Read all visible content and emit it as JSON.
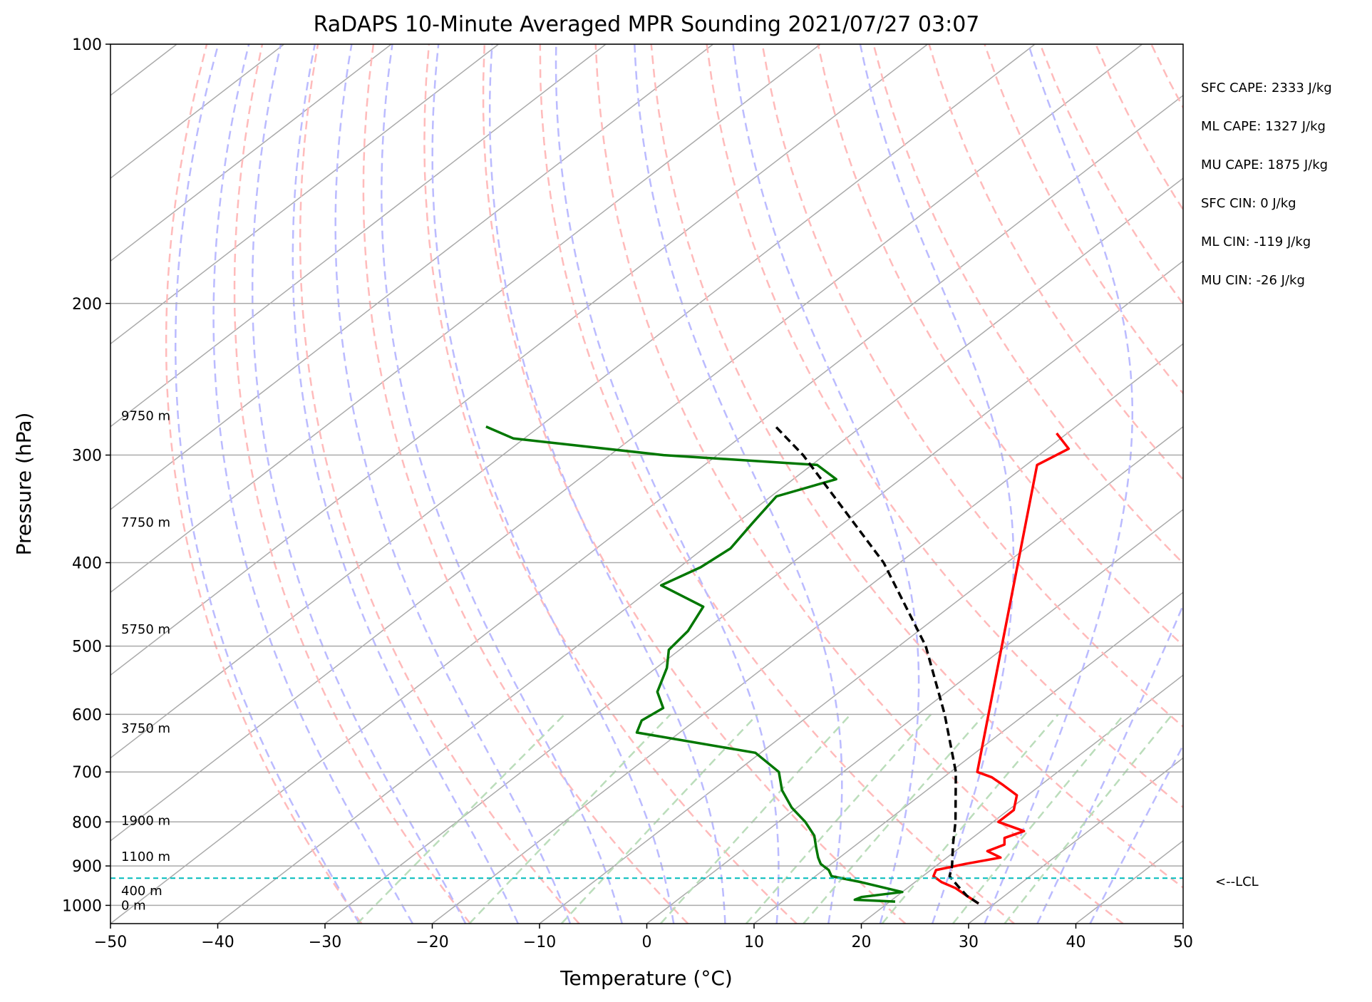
{
  "chart_data": {
    "type": "line",
    "title": "RaDAPS 10-Minute Averaged MPR Sounding 2021/07/27 03:07",
    "xlabel": "Temperature (°C)",
    "ylabel": "Pressure (hPa)",
    "xlim": [
      -50,
      50
    ],
    "ylim": [
      1050,
      100
    ],
    "y_scale": "log",
    "x_ticks": [
      -50,
      -40,
      -30,
      -20,
      -10,
      0,
      10,
      20,
      30,
      40,
      50
    ],
    "x_tick_labels": [
      "−50",
      "−40",
      "−30",
      "−20",
      "−10",
      "0",
      "10",
      "20",
      "30",
      "40",
      "50"
    ],
    "y_ticks": [
      100,
      200,
      300,
      400,
      500,
      600,
      700,
      800,
      900,
      1000
    ],
    "y_tick_labels": [
      "100",
      "200",
      "300",
      "400",
      "500",
      "600",
      "700",
      "800",
      "900",
      "1000"
    ],
    "grid": true,
    "skew": true,
    "background_lines": {
      "isotherms": {
        "color": "#aaaaaa"
      },
      "dry_adiabats": {
        "color": "#ffbbbb"
      },
      "moist_adiabats": {
        "color": "#bbbbff"
      },
      "mixing_ratio": {
        "color": "#bbddbb"
      }
    },
    "series": [
      {
        "color": "#ff0000",
        "points": [
          {
            "p": 995,
            "t": 28.5
          },
          {
            "p": 975,
            "t": 26.5
          },
          {
            "p": 955,
            "t": 24.5
          },
          {
            "p": 940,
            "t": 22.5
          },
          {
            "p": 925,
            "t": 21.0
          },
          {
            "p": 910,
            "t": 20.5
          },
          {
            "p": 895,
            "t": 22.5
          },
          {
            "p": 880,
            "t": 25.0
          },
          {
            "p": 865,
            "t": 23.0
          },
          {
            "p": 850,
            "t": 23.8
          },
          {
            "p": 835,
            "t": 23.0
          },
          {
            "p": 820,
            "t": 24.0
          },
          {
            "p": 800,
            "t": 20.5
          },
          {
            "p": 775,
            "t": 20.5
          },
          {
            "p": 745,
            "t": 19.0
          },
          {
            "p": 725,
            "t": 16.5
          },
          {
            "p": 710,
            "t": 14.5
          },
          {
            "p": 700,
            "t": 12.5
          },
          {
            "p": 308,
            "t": -19.0
          },
          {
            "p": 295,
            "t": -18.0
          },
          {
            "p": 283,
            "t": -21.0
          }
        ]
      },
      {
        "color": "#007700",
        "points": [
          {
            "p": 990,
            "t": 20.5
          },
          {
            "p": 985,
            "t": 16.5
          },
          {
            "p": 978,
            "t": 16.8
          },
          {
            "p": 965,
            "t": 20.0
          },
          {
            "p": 955,
            "t": 18.0
          },
          {
            "p": 940,
            "t": 15.0
          },
          {
            "p": 925,
            "t": 11.5
          },
          {
            "p": 910,
            "t": 10.5
          },
          {
            "p": 895,
            "t": 9.0
          },
          {
            "p": 880,
            "t": 8.0
          },
          {
            "p": 855,
            "t": 6.5
          },
          {
            "p": 830,
            "t": 5.0
          },
          {
            "p": 800,
            "t": 2.5
          },
          {
            "p": 770,
            "t": -0.5
          },
          {
            "p": 735,
            "t": -3.5
          },
          {
            "p": 700,
            "t": -6.0
          },
          {
            "p": 665,
            "t": -10.5
          },
          {
            "p": 630,
            "t": -24.0
          },
          {
            "p": 610,
            "t": -25.0
          },
          {
            "p": 590,
            "t": -24.5
          },
          {
            "p": 565,
            "t": -27.0
          },
          {
            "p": 530,
            "t": -29.0
          },
          {
            "p": 505,
            "t": -31.0
          },
          {
            "p": 480,
            "t": -31.5
          },
          {
            "p": 450,
            "t": -33.0
          },
          {
            "p": 425,
            "t": -39.5
          },
          {
            "p": 405,
            "t": -38.0
          },
          {
            "p": 385,
            "t": -37.5
          },
          {
            "p": 360,
            "t": -38.5
          },
          {
            "p": 335,
            "t": -39.5
          },
          {
            "p": 320,
            "t": -36.0
          },
          {
            "p": 308,
            "t": -39.5
          },
          {
            "p": 300,
            "t": -55.0
          },
          {
            "p": 287,
            "t": -71.0
          },
          {
            "p": 278,
            "t": -75.0
          }
        ]
      },
      {
        "color": "#000000",
        "dashed": true,
        "points": [
          {
            "p": 995,
            "t": 28.5
          },
          {
            "p": 975,
            "t": 26.5
          },
          {
            "p": 950,
            "t": 24.5
          },
          {
            "p": 925,
            "t": 22.5
          },
          {
            "p": 900,
            "t": 21.5
          },
          {
            "p": 850,
            "t": 19.0
          },
          {
            "p": 800,
            "t": 16.5
          },
          {
            "p": 700,
            "t": 10.5
          },
          {
            "p": 600,
            "t": 2.5
          },
          {
            "p": 500,
            "t": -7.5
          },
          {
            "p": 400,
            "t": -21.5
          },
          {
            "p": 300,
            "t": -42.0
          },
          {
            "p": 278,
            "t": -48.0
          }
        ]
      },
      {
        "color": "#00bbbb",
        "dashed": true,
        "points": [
          {
            "p": 930,
            "t_left": -50,
            "t_right": 50
          }
        ]
      }
    ],
    "height_labels": [
      {
        "p": 1000,
        "text": "0 m"
      },
      {
        "p": 962,
        "text": "400 m"
      },
      {
        "p": 878,
        "text": "1100 m"
      },
      {
        "p": 797,
        "text": "1900 m"
      },
      {
        "p": 623,
        "text": "3750 m"
      },
      {
        "p": 478,
        "text": "5750 m"
      },
      {
        "p": 359,
        "text": "7750 m"
      },
      {
        "p": 270,
        "text": "9750 m"
      }
    ],
    "lcl": {
      "p": 930,
      "label": "<--LCL"
    },
    "stats": [
      "SFC CAPE: 2333 J/kg",
      "ML CAPE: 1327 J/kg",
      "MU CAPE: 1875 J/kg",
      "SFC CIN: 0 J/kg",
      "ML CIN: -119 J/kg",
      "MU CIN: -26 J/kg"
    ]
  }
}
